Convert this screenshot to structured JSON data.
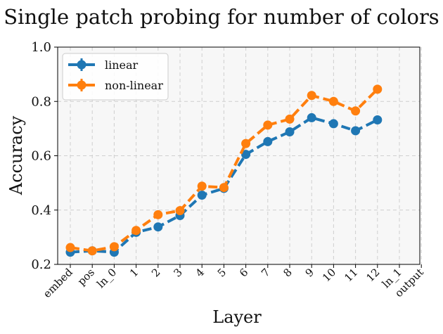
{
  "chart_data": {
    "type": "line",
    "title": "Single patch probing for number of colors",
    "xlabel": "Layer",
    "ylabel": "Accuracy",
    "ylim": [
      0.2,
      1.0
    ],
    "yticks": [
      "0.2",
      "0.4",
      "0.6",
      "0.8",
      "1.0"
    ],
    "categories": [
      "embed",
      "pos",
      "ln_0",
      "1",
      "2",
      "3",
      "4",
      "5",
      "6",
      "7",
      "8",
      "9",
      "10",
      "11",
      "12",
      "ln_1",
      "output"
    ],
    "grid": true,
    "legend_position": "top-left",
    "series": [
      {
        "name": "linear",
        "color": "#1f77b4",
        "values": [
          0.245,
          0.25,
          0.245,
          0.318,
          0.338,
          0.38,
          0.455,
          0.48,
          0.605,
          0.652,
          0.688,
          0.74,
          0.718,
          0.692,
          0.732,
          null,
          null
        ]
      },
      {
        "name": "non-linear",
        "color": "#ff7f0e",
        "values": [
          0.262,
          0.25,
          0.265,
          0.325,
          0.383,
          0.398,
          0.488,
          0.483,
          0.645,
          0.713,
          0.735,
          0.822,
          0.8,
          0.765,
          0.845,
          null,
          null
        ]
      }
    ]
  }
}
